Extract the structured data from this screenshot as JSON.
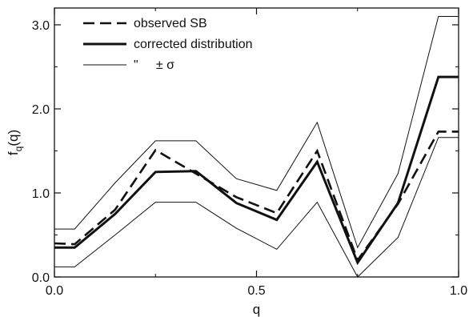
{
  "chart_data": {
    "type": "line",
    "xlabel": "q",
    "ylabel": "f",
    "ylabel_sub": "q",
    "ylabel_suffix": "(q)",
    "xlim": [
      0.0,
      1.0
    ],
    "ylim": [
      0.0,
      3.2
    ],
    "x_ticks": [
      "0.0",
      "0.5",
      "1.0"
    ],
    "x_tick_values": [
      0.0,
      0.5,
      1.0
    ],
    "x_minor_ticks": [
      0.25,
      0.75
    ],
    "y_ticks": [
      "0.0",
      "1.0",
      "2.0",
      "3.0"
    ],
    "y_tick_values": [
      0.0,
      1.0,
      2.0,
      3.0
    ],
    "y_minor_ticks": [
      0.5,
      1.5,
      2.5
    ],
    "grid": false,
    "legend_position": "top-left",
    "series": [
      {
        "name": "observed SB",
        "style": "dashed",
        "x": [
          0.0,
          0.05,
          0.15,
          0.25,
          0.35,
          0.45,
          0.55,
          0.65,
          0.75,
          0.85,
          0.95,
          1.0
        ],
        "y": [
          0.4,
          0.39,
          0.8,
          1.51,
          1.23,
          0.95,
          0.76,
          1.5,
          0.2,
          0.87,
          1.73,
          1.73
        ]
      },
      {
        "name": "corrected distribution",
        "style": "solid-thick",
        "x": [
          0.0,
          0.05,
          0.15,
          0.25,
          0.35,
          0.45,
          0.55,
          0.65,
          0.75,
          0.85,
          0.95,
          1.0
        ],
        "y": [
          0.35,
          0.35,
          0.75,
          1.25,
          1.26,
          0.88,
          0.68,
          1.37,
          0.17,
          0.88,
          2.38,
          2.38
        ]
      },
      {
        "name": "\"     ± σ",
        "style": "solid-thin",
        "x": [
          0.0,
          0.05,
          0.15,
          0.25,
          0.35,
          0.45,
          0.55,
          0.65,
          0.75,
          0.85,
          0.95,
          1.0
        ],
        "y": [
          0.57,
          0.57,
          1.12,
          1.62,
          1.62,
          1.17,
          1.03,
          1.84,
          0.35,
          1.23,
          3.1,
          3.1
        ]
      },
      {
        "name": "",
        "style": "solid-thin",
        "x": [
          0.0,
          0.05,
          0.15,
          0.25,
          0.35,
          0.45,
          0.55,
          0.65,
          0.75,
          0.85,
          0.95,
          1.0
        ],
        "y": [
          0.12,
          0.12,
          0.5,
          0.89,
          0.89,
          0.58,
          0.33,
          0.89,
          0.0,
          0.47,
          1.66,
          1.66
        ]
      }
    ],
    "legend": [
      {
        "label": "observed SB",
        "style": "dashed"
      },
      {
        "label": "corrected distribution",
        "style": "solid-thick"
      },
      {
        "label": "\"     ± σ",
        "style": "solid-thin"
      }
    ]
  }
}
